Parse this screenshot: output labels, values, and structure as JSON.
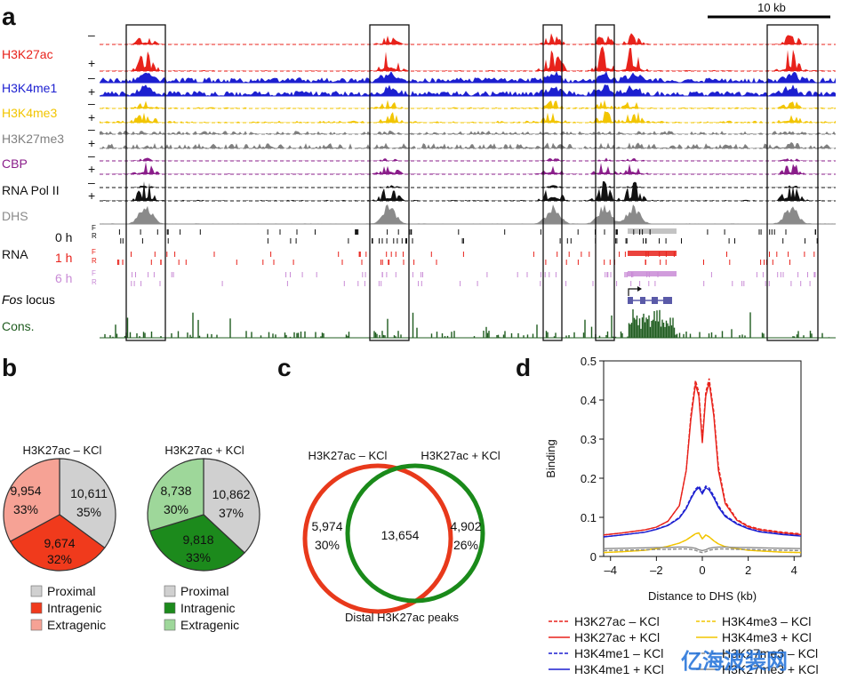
{
  "panel_a": {
    "letter": "a",
    "scale_bar_label": "10 kb",
    "tracks": [
      {
        "label": "H3K27ac",
        "color": "#e8221b",
        "signs": [
          "–",
          "+"
        ]
      },
      {
        "label": "H3K4me1",
        "color": "#1c1fd0",
        "signs": [
          "–",
          "+"
        ]
      },
      {
        "label": "H3K4me3",
        "color": "#f2c500",
        "signs": [
          "–",
          "+"
        ]
      },
      {
        "label": "H3K27me3",
        "color": "#808080",
        "signs": [
          "–",
          "+"
        ]
      },
      {
        "label": "CBP",
        "color": "#8a1d8a",
        "signs": [
          "–",
          "+"
        ]
      },
      {
        "label": "RNA Pol II",
        "color": "#111111",
        "signs": [
          "–",
          "+"
        ]
      },
      {
        "label": "DHS",
        "color": "#8a8a8a",
        "signs": []
      }
    ],
    "rna_label": "RNA",
    "rna_times": [
      {
        "label": "0 h",
        "color": "#111111"
      },
      {
        "label": "1 h",
        "color": "#e8221b"
      },
      {
        "label": "6 h",
        "color": "#c98bd6"
      }
    ],
    "strand_labels": [
      "F",
      "R"
    ],
    "fos_label_italic": "Fos",
    "fos_label_rest": " locus",
    "cons_label": "Cons.",
    "cons_color": "#1f5c1f"
  },
  "panel_b": {
    "letter": "b",
    "pies": [
      {
        "title": "H3K27ac – KCl",
        "title_color": "#e8221b",
        "slices": [
          {
            "category": "Proximal",
            "value": 10611,
            "label_value": "10,611",
            "label_pct": "35%",
            "color": "#d0d0d0"
          },
          {
            "category": "Intragenic",
            "value": 9674,
            "label_value": "9,674",
            "label_pct": "32%",
            "color": "#f03a1c"
          },
          {
            "category": "Extragenic",
            "value": 9954,
            "label_value": "9,954",
            "label_pct": "33%",
            "color": "#f6a295"
          }
        ],
        "legend": [
          "Proximal",
          "Intragenic",
          "Extragenic"
        ]
      },
      {
        "title": "H3K27ac + KCl",
        "title_color": "#1a8a1a",
        "slices": [
          {
            "category": "Proximal",
            "value": 10862,
            "label_value": "10,862",
            "label_pct": "37%",
            "color": "#d0d0d0"
          },
          {
            "category": "Intragenic",
            "value": 9818,
            "label_value": "9,818",
            "label_pct": "33%",
            "color": "#1c8a1c"
          },
          {
            "category": "Extragenic",
            "value": 8738,
            "label_value": "8,738",
            "label_pct": "30%",
            "color": "#9ed79a"
          }
        ],
        "legend": [
          "Proximal",
          "Intragenic",
          "Extragenic"
        ]
      }
    ]
  },
  "panel_c": {
    "letter": "c",
    "left_title": "H3K27ac – KCl",
    "left_color": "#e8391b",
    "right_title": "H3K27ac + KCl",
    "right_color": "#1a8a1a",
    "left_only_value": "5,974",
    "left_only_pct": "30%",
    "overlap_value": "13,654",
    "right_only_value": "4,902",
    "right_only_pct": "26%",
    "caption": "Distal H3K27ac peaks"
  },
  "chart_data": {
    "type": "line",
    "panel_letter": "d",
    "xlabel": "Distance to DHS (kb)",
    "ylabel": "Binding",
    "xlim": [
      -4.3,
      4.3
    ],
    "ylim": [
      0,
      0.5
    ],
    "xticks": [
      -4,
      -2,
      0,
      2,
      4
    ],
    "xtick_labels": [
      "–4",
      "–2",
      "0",
      "2",
      "4"
    ],
    "yticks": [
      0,
      0.1,
      0.2,
      0.3,
      0.4,
      0.5
    ],
    "ytick_labels": [
      "0",
      "0.1",
      "0.2",
      "0.3",
      "0.4",
      "0.5"
    ],
    "x": [
      -4.3,
      -3.5,
      -2.5,
      -2.0,
      -1.5,
      -1.0,
      -0.7,
      -0.5,
      -0.3,
      -0.15,
      0.0,
      0.15,
      0.3,
      0.5,
      0.7,
      1.0,
      1.5,
      2.0,
      2.5,
      3.5,
      4.3
    ],
    "series": [
      {
        "name": "H3K27ac – KCl",
        "color": "#e8221b",
        "dash": true,
        "values": [
          0.055,
          0.06,
          0.068,
          0.075,
          0.09,
          0.13,
          0.22,
          0.36,
          0.45,
          0.42,
          0.3,
          0.42,
          0.455,
          0.37,
          0.23,
          0.14,
          0.095,
          0.078,
          0.07,
          0.062,
          0.058
        ]
      },
      {
        "name": "H3K27ac + KCl",
        "color": "#e8221b",
        "dash": false,
        "values": [
          0.055,
          0.06,
          0.068,
          0.075,
          0.09,
          0.13,
          0.22,
          0.35,
          0.44,
          0.41,
          0.29,
          0.41,
          0.445,
          0.36,
          0.22,
          0.135,
          0.093,
          0.076,
          0.068,
          0.06,
          0.056
        ]
      },
      {
        "name": "H3K4me1 – KCl",
        "color": "#1c1fd0",
        "dash": true,
        "values": [
          0.05,
          0.055,
          0.062,
          0.07,
          0.08,
          0.1,
          0.125,
          0.15,
          0.172,
          0.18,
          0.165,
          0.18,
          0.175,
          0.155,
          0.13,
          0.105,
          0.085,
          0.072,
          0.064,
          0.057,
          0.053
        ]
      },
      {
        "name": "H3K4me1 + KCl",
        "color": "#1c1fd0",
        "dash": false,
        "values": [
          0.05,
          0.055,
          0.062,
          0.069,
          0.079,
          0.098,
          0.122,
          0.147,
          0.168,
          0.176,
          0.16,
          0.176,
          0.17,
          0.15,
          0.126,
          0.102,
          0.083,
          0.071,
          0.063,
          0.056,
          0.052
        ]
      },
      {
        "name": "H3K4me3 – KCl",
        "color": "#f2c500",
        "dash": true,
        "values": [
          0.01,
          0.012,
          0.016,
          0.02,
          0.026,
          0.034,
          0.042,
          0.05,
          0.058,
          0.06,
          0.045,
          0.055,
          0.05,
          0.04,
          0.032,
          0.025,
          0.02,
          0.016,
          0.014,
          0.011,
          0.01
        ]
      },
      {
        "name": "H3K4me3 + KCl",
        "color": "#f2c500",
        "dash": false,
        "values": [
          0.01,
          0.012,
          0.016,
          0.02,
          0.026,
          0.034,
          0.042,
          0.05,
          0.058,
          0.06,
          0.045,
          0.055,
          0.05,
          0.04,
          0.032,
          0.025,
          0.02,
          0.016,
          0.014,
          0.011,
          0.01
        ]
      },
      {
        "name": "H3K27me3 – KCl",
        "color": "#8a8a8a",
        "dash": true,
        "values": [
          0.015,
          0.016,
          0.017,
          0.018,
          0.018,
          0.019,
          0.019,
          0.018,
          0.016,
          0.012,
          0.01,
          0.012,
          0.016,
          0.018,
          0.019,
          0.019,
          0.018,
          0.018,
          0.017,
          0.016,
          0.015
        ]
      },
      {
        "name": "H3K27me3 + KCl",
        "color": "#8a8a8a",
        "dash": false,
        "values": [
          0.02,
          0.021,
          0.022,
          0.023,
          0.023,
          0.024,
          0.024,
          0.023,
          0.021,
          0.017,
          0.015,
          0.017,
          0.021,
          0.023,
          0.024,
          0.024,
          0.023,
          0.023,
          0.022,
          0.021,
          0.02
        ]
      }
    ],
    "legend_placement": "bottom"
  },
  "watermark": "亿海波装网"
}
